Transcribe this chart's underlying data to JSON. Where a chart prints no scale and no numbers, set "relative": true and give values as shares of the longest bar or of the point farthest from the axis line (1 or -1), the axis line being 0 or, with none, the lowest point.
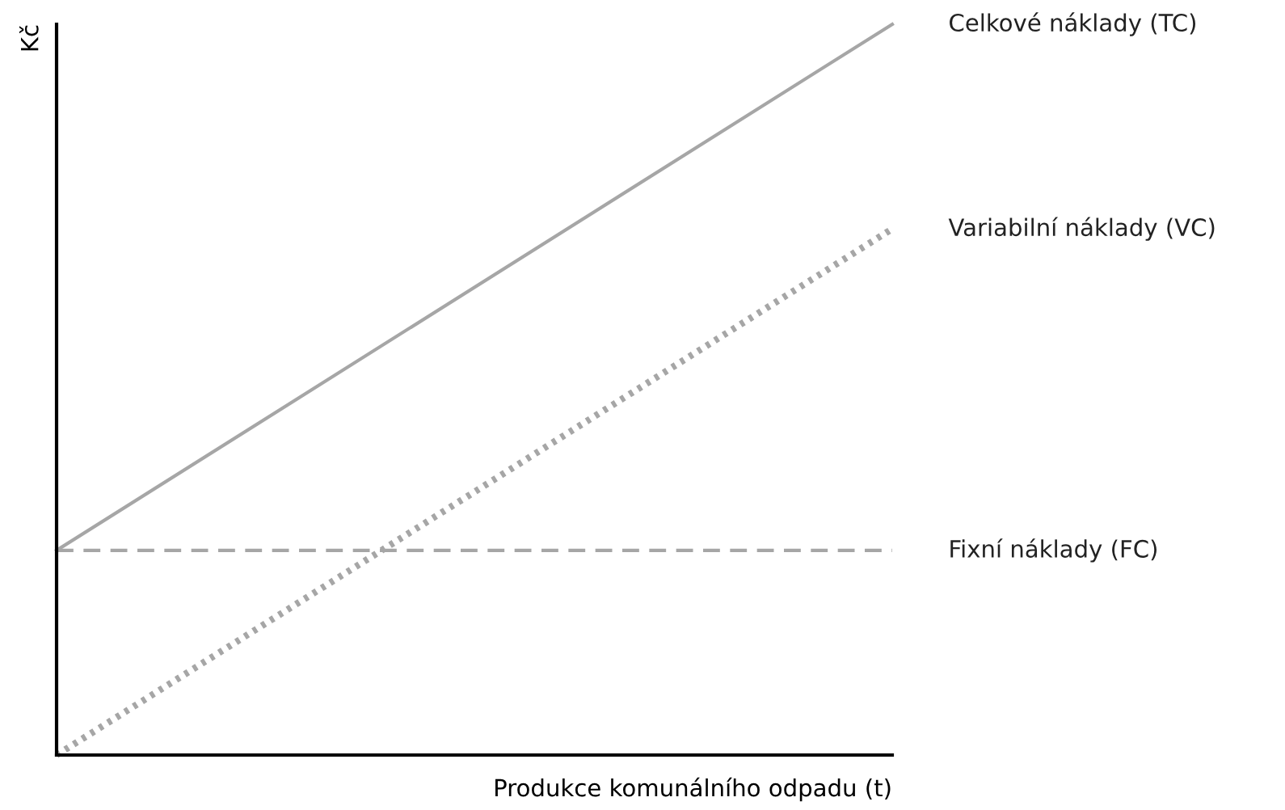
{
  "chart_data": {
    "type": "line",
    "relative": true,
    "xlabel": "Produkce komunálního odpadu (t)",
    "ylabel": "Kč",
    "categories": [
      null,
      null
    ],
    "series": [
      {
        "name": "Celkové náklady (TC)",
        "color": "#a6a6a6",
        "line_style": "solid",
        "values": [
          0.28,
          1
        ]
      },
      {
        "name": "Variabilní náklady (VC)",
        "color": "#a6a6a6",
        "line_style": "dotted",
        "values": [
          0,
          0.72
        ]
      },
      {
        "name": "Fixní náklady (FC)",
        "color": "#a6a6a6",
        "line_style": "dashed",
        "values": [
          0.28,
          0.28
        ]
      }
    ]
  }
}
